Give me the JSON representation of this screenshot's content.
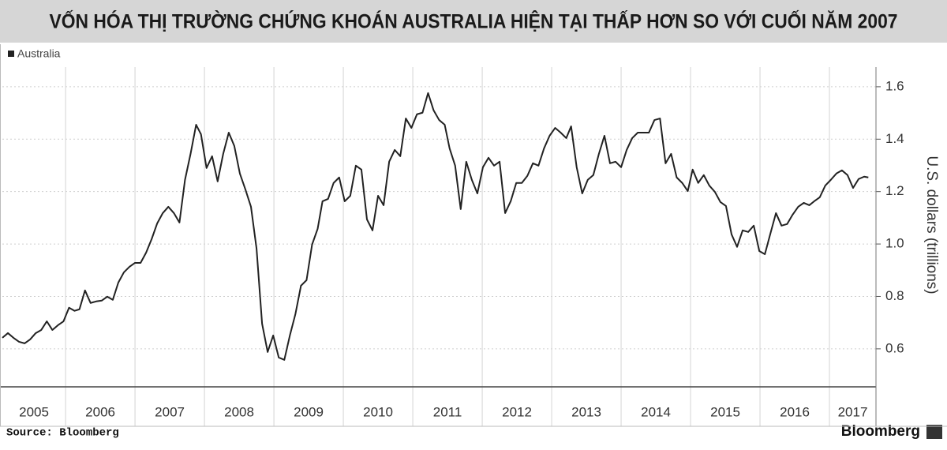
{
  "chart_data": {
    "type": "line",
    "title": "VỐN HÓA THỊ TRƯỜNG CHỨNG KHOÁN AUSTRALIA HIỆN TẠI THẤP HƠN SO VỚI CUỐI NĂM 2007",
    "y_label": "U.S. dollars (trillions)",
    "source": "Source: Bloomberg",
    "brand": "Bloomberg",
    "legend": "upper left",
    "grid": true,
    "xlim": [
      2005.09,
      2017.67
    ],
    "xticks": [
      2005,
      2006,
      2007,
      2008,
      2009,
      2010,
      2011,
      2012,
      2013,
      2014,
      2015,
      2016,
      2017
    ],
    "ylim": [
      0.455,
      1.675
    ],
    "yticks": [
      0.6,
      0.8,
      {
        "value": 1,
        "label": "1.0"
      },
      1.2,
      1.4,
      1.6
    ],
    "x": [
      2005.09,
      2005.17,
      2005.25,
      2005.33,
      2005.41,
      2005.49,
      2005.57,
      2005.65,
      2005.73,
      2005.81,
      2005.89,
      2005.97,
      2006.05,
      2006.13,
      2006.2,
      2006.28,
      2006.36,
      2006.44,
      2006.52,
      2006.6,
      2006.68,
      2006.76,
      2006.84,
      2006.92,
      2007,
      2007.08,
      2007.16,
      2007.24,
      2007.32,
      2007.4,
      2007.48,
      2007.56,
      2007.64,
      2007.72,
      2007.8,
      2007.88,
      2007.95,
      2008.03,
      2008.11,
      2008.19,
      2008.27,
      2008.35,
      2008.43,
      2008.51,
      2008.59,
      2008.67,
      2008.75,
      2008.83,
      2008.91,
      2008.99,
      2009.07,
      2009.15,
      2009.23,
      2009.31,
      2009.39,
      2009.47,
      2009.55,
      2009.63,
      2009.7,
      2009.78,
      2009.86,
      2009.94,
      2010.02,
      2010.1,
      2010.18,
      2010.26,
      2010.34,
      2010.42,
      2010.5,
      2010.58,
      2010.66,
      2010.74,
      2010.82,
      2010.9,
      2010.98,
      2011.06,
      2011.14,
      2011.22,
      2011.3,
      2011.38,
      2011.46,
      2011.53,
      2011.61,
      2011.69,
      2011.77,
      2011.85,
      2011.93,
      2012.01,
      2012.09,
      2012.17,
      2012.25,
      2012.33,
      2012.41,
      2012.49,
      2012.57,
      2012.65,
      2012.73,
      2012.81,
      2012.89,
      2012.97,
      2013.05,
      2013.13,
      2013.21,
      2013.28,
      2013.36,
      2013.44,
      2013.52,
      2013.6,
      2013.68,
      2013.76,
      2013.84,
      2013.92,
      2014,
      2014.08,
      2014.16,
      2014.24,
      2014.32,
      2014.4,
      2014.48,
      2014.56,
      2014.64,
      2014.72,
      2014.8,
      2014.88,
      2014.96,
      2015.03,
      2015.11,
      2015.19,
      2015.27,
      2015.35,
      2015.43,
      2015.51,
      2015.59,
      2015.67,
      2015.75,
      2015.83,
      2015.91,
      2015.99,
      2016.07,
      2016.15,
      2016.23,
      2016.31,
      2016.39,
      2016.47,
      2016.55,
      2016.63,
      2016.71,
      2016.78,
      2016.86,
      2016.94,
      2017.02,
      2017.1,
      2017.18,
      2017.26,
      2017.34,
      2017.42,
      2017.5,
      2017.56
    ],
    "series": [
      {
        "name": "Australia",
        "color": "#222222",
        "values": [
          0.642,
          0.66,
          0.642,
          0.627,
          0.621,
          0.636,
          0.66,
          0.672,
          0.705,
          0.672,
          0.69,
          0.705,
          0.757,
          0.745,
          0.751,
          0.823,
          0.775,
          0.781,
          0.784,
          0.799,
          0.787,
          0.853,
          0.892,
          0.913,
          0.928,
          0.928,
          0.967,
          1.019,
          1.079,
          1.118,
          1.142,
          1.118,
          1.082,
          1.245,
          1.344,
          1.455,
          1.419,
          1.29,
          1.335,
          1.239,
          1.344,
          1.425,
          1.374,
          1.269,
          1.208,
          1.142,
          0.983,
          0.696,
          0.588,
          0.651,
          0.567,
          0.558,
          0.651,
          0.733,
          0.841,
          0.862,
          0.998,
          1.058,
          1.163,
          1.172,
          1.233,
          1.254,
          1.163,
          1.184,
          1.299,
          1.284,
          1.094,
          1.052,
          1.184,
          1.148,
          1.314,
          1.359,
          1.335,
          1.479,
          1.443,
          1.495,
          1.501,
          1.576,
          1.51,
          1.473,
          1.455,
          1.365,
          1.299,
          1.133,
          1.314,
          1.245,
          1.193,
          1.293,
          1.329,
          1.299,
          1.314,
          1.118,
          1.163,
          1.233,
          1.233,
          1.26,
          1.308,
          1.299,
          1.365,
          1.413,
          1.443,
          1.425,
          1.404,
          1.449,
          1.293,
          1.193,
          1.245,
          1.263,
          1.344,
          1.413,
          1.308,
          1.314,
          1.293,
          1.359,
          1.404,
          1.425,
          1.425,
          1.425,
          1.473,
          1.479,
          1.308,
          1.344,
          1.254,
          1.233,
          1.202,
          1.284,
          1.233,
          1.263,
          1.223,
          1.199,
          1.16,
          1.145,
          1.037,
          0.989,
          1.052,
          1.046,
          1.07,
          0.973,
          0.961,
          1.04,
          1.118,
          1.07,
          1.076,
          1.112,
          1.142,
          1.157,
          1.148,
          1.163,
          1.178,
          1.223,
          1.245,
          1.269,
          1.281,
          1.263,
          1.214,
          1.248,
          1.257,
          1.254
        ]
      }
    ]
  }
}
